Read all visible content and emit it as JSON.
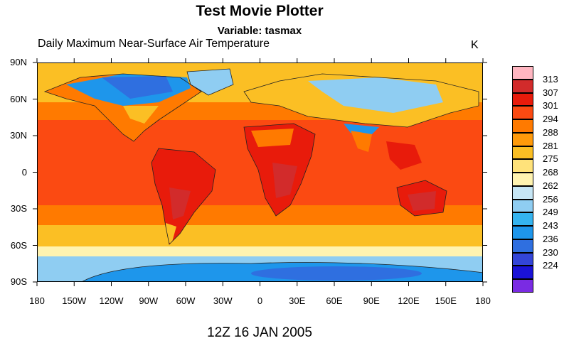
{
  "title": "Test Movie Plotter",
  "subtitle": "Variable: tasmax",
  "long_name": "Daily Maximum Near-Surface Air Temperature",
  "units": "K",
  "timestamp": "12Z 16 JAN 2005",
  "lat_labels": [
    "90N",
    "60N",
    "30N",
    "0",
    "30S",
    "60S",
    "90S"
  ],
  "lon_labels": [
    "180",
    "150W",
    "120W",
    "90W",
    "60W",
    "30W",
    "0",
    "30E",
    "60E",
    "90E",
    "120E",
    "150E",
    "180"
  ],
  "colorbar": {
    "colors": [
      "#ffb6c1",
      "#d22b2b",
      "#e81b0b",
      "#fb4a12",
      "#ff7a00",
      "#ff9a0a",
      "#fbbf24",
      "#ffe27a",
      "#fff3b0",
      "#c6e6f5",
      "#8fcdf2",
      "#35b4f0",
      "#1e96eb",
      "#2f6fe0",
      "#3345d8",
      "#1a12d6",
      "#7a2be3"
    ],
    "labels": [
      "313",
      "307",
      "301",
      "294",
      "288",
      "281",
      "275",
      "268",
      "262",
      "256",
      "249",
      "243",
      "236",
      "230",
      "224"
    ]
  },
  "map_colors": {
    "ocean_tropics": "#fb4a12",
    "land_tropics": "#e81b0b",
    "hot_core": "#d22b2b",
    "subtropics": "#ff7a00",
    "midlat": "#fbbf24",
    "cool": "#fff3b0",
    "cold": "#8fcdf2",
    "very_cold": "#1e96eb",
    "frigid": "#2f6fe0",
    "coast_line": "#222222"
  }
}
